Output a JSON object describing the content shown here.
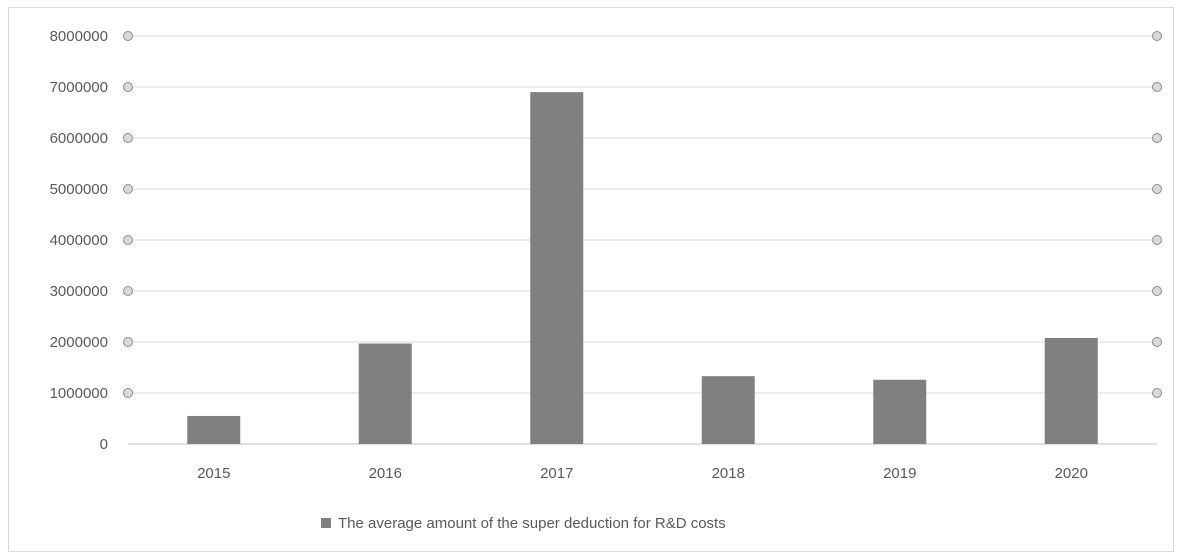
{
  "chart_data": {
    "type": "bar",
    "categories": [
      "2015",
      "2016",
      "2017",
      "2018",
      "2019",
      "2020"
    ],
    "series": [
      {
        "name": "The average amount of the super deduction for R&D costs",
        "values": [
          550000,
          1970000,
          6900000,
          1330000,
          1260000,
          2080000
        ]
      }
    ],
    "title": "",
    "xlabel": "",
    "ylabel": "",
    "ylim": [
      0,
      8000000
    ],
    "yticks": [
      "0",
      "1000000",
      "2000000",
      "3000000",
      "4000000",
      "5000000",
      "6000000",
      "7000000",
      "8000000"
    ],
    "grid": true,
    "legend_position": "bottom",
    "bar_color": "#808080"
  }
}
